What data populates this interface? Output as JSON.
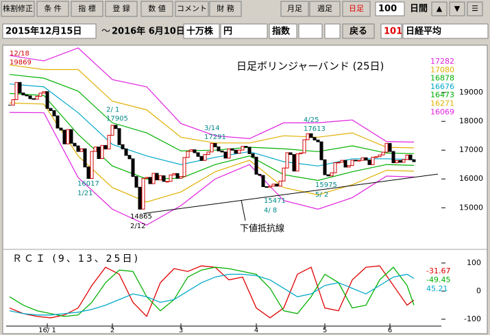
{
  "toolbar": {
    "buttons": [
      "株割修正",
      "条 件",
      "指 標",
      "登 録",
      "数 値",
      "コメント",
      "財 務",
      "月足",
      "週足",
      "日足"
    ],
    "period": "100",
    "period_unit": "日間",
    "nav": [
      "▲",
      "▼",
      "☰"
    ]
  },
  "query": {
    "from": "2015年12月15日",
    "sep": "～",
    "to": "2016年 6月10日",
    "unit": "十万株",
    "currency": "円",
    "index_label": "指数",
    "back": "戻る",
    "code": "101",
    "name": "日経平均"
  },
  "chart_data": [
    {
      "type": "candlestick",
      "title": "日足ボリンジャーバンド (25日)",
      "values": [
        18565,
        18756,
        19353,
        18986,
        18916,
        18886,
        18789,
        18769,
        18873,
        18982,
        19033,
        18450,
        18374,
        18191,
        17767,
        17697,
        17218,
        17715,
        17240,
        17147,
        16955,
        17048,
        16416,
        16017,
        16958,
        17110,
        16708,
        17163,
        17041,
        17518,
        17865,
        17750,
        17191,
        17044,
        16819,
        16700,
        16085,
        15713,
        14952,
        16022,
        16054,
        15836,
        16196,
        15967,
        16111,
        15915,
        15915,
        16140,
        16188,
        16026,
        16085,
        16746,
        16960,
        17014,
        16911,
        16784,
        16642,
        16852,
        16938,
        17233,
        17117,
        16974,
        16936,
        16724,
        17048,
        17000,
        16892,
        17002,
        17134,
        17103,
        16878,
        16758,
        16164,
        16123,
        15732,
        15715,
        15749,
        15821,
        15751,
        15928,
        16381,
        16911,
        16848,
        16275,
        16874,
        16906,
        17363,
        17572,
        17440,
        17353,
        17290,
        16666,
        16147,
        16106,
        16216,
        16565,
        16579,
        16646,
        16412,
        16466,
        16652,
        16644,
        16646,
        16736,
        16654,
        16498,
        16757,
        16772,
        16834,
        16931,
        17235,
        16955,
        16562,
        16642,
        16580,
        16675,
        16830,
        16668,
        16601
      ],
      "xlim": [
        -1,
        126
      ],
      "ylim": [
        13650,
        20550
      ],
      "yticks": [
        15000,
        16000,
        17000,
        18000,
        19000
      ],
      "bands": {
        "x": [
          0,
          10,
          20,
          30,
          40,
          50,
          60,
          70,
          80,
          90,
          100,
          110,
          118
        ],
        "series": [
          {
            "color": "#e020e0",
            "values": [
              20290,
              20100,
              20550,
              19450,
              19200,
              17925,
              17500,
              17400,
              17950,
              17950,
              18050,
              17300,
              17282
            ]
          },
          {
            "color": "#e0b000",
            "values": [
              19960,
              19800,
              19800,
              18700,
              18400,
              17450,
              17250,
              17250,
              17500,
              17450,
              17600,
              17100,
              17080
            ]
          },
          {
            "color": "#00b000",
            "values": [
              19630,
              19500,
              19050,
              17950,
              17600,
              16975,
              17000,
              17100,
              17050,
              16950,
              17150,
              16900,
              16878
            ]
          },
          {
            "color": "#00a8c8",
            "values": [
              19300,
              19200,
              18300,
              17200,
              16800,
              16500,
              16750,
              16950,
              16600,
              16450,
              16700,
              16700,
              16676
            ]
          },
          {
            "color": "#00b000",
            "values": [
              18970,
              18900,
              17550,
              16450,
              16000,
              16025,
              16500,
              16800,
              16150,
              15950,
              16250,
              16500,
              16473
            ]
          },
          {
            "color": "#e0b000",
            "values": [
              18640,
              18600,
              16800,
              15700,
              15200,
              15550,
              16250,
              16650,
              15700,
              15450,
              15800,
              16300,
              16271
            ]
          },
          {
            "color": "#e020e0",
            "values": [
              18310,
              18300,
              16050,
              14950,
              14400,
              15075,
              16000,
              16500,
              15250,
              14950,
              15350,
              16100,
              16069
            ]
          }
        ]
      },
      "annotations": [
        {
          "date": "12/18",
          "value": 19869
        },
        {
          "date": "2/ 1",
          "value": 17905
        },
        {
          "date": "3/14",
          "value": 17291
        },
        {
          "date": "4/25",
          "value": 17613
        },
        {
          "date": "1/21",
          "value": 16017
        },
        {
          "date": "2/12",
          "value": 14865
        },
        {
          "date": "4/ 8",
          "value": 15471
        },
        {
          "date": "5/ 2",
          "value": 15975
        }
      ],
      "support_line": {
        "label": "下値抵抗線",
        "x": [
          39,
          125
        ],
        "values": [
          14800,
          16170
        ]
      }
    },
    {
      "type": "line",
      "title": "ＲＣＩ (9、13、25日)",
      "x": [
        0,
        4,
        8,
        12,
        16,
        20,
        24,
        28,
        32,
        36,
        40,
        44,
        48,
        52,
        56,
        60,
        64,
        68,
        72,
        76,
        80,
        84,
        88,
        92,
        96,
        100,
        104,
        108,
        112,
        116,
        118
      ],
      "xlim": [
        -1,
        126
      ],
      "ylim": [
        -144,
        134
      ],
      "yticks": [
        -100,
        0,
        100
      ],
      "xticks": [
        {
          "value": 11,
          "label": "16/ 1"
        },
        {
          "value": 30,
          "label": "2"
        },
        {
          "value": 50,
          "label": "3"
        },
        {
          "value": 72,
          "label": "4"
        },
        {
          "value": 92,
          "label": "5"
        },
        {
          "value": 111,
          "label": "6"
        }
      ],
      "series": [
        {
          "color": "#e00000",
          "values": [
            -60,
            -80,
            -90,
            -95,
            -85,
            -60,
            20,
            85,
            60,
            -40,
            -90,
            30,
            80,
            70,
            90,
            85,
            40,
            50,
            -60,
            -95,
            -60,
            60,
            85,
            -60,
            -70,
            40,
            85,
            90,
            20,
            -50,
            -31.67
          ]
        },
        {
          "color": "#00b000",
          "values": [
            -20,
            -50,
            -70,
            -80,
            -90,
            -85,
            -40,
            30,
            75,
            70,
            -20,
            -70,
            -30,
            50,
            75,
            85,
            80,
            70,
            60,
            10,
            -70,
            -80,
            -20,
            60,
            30,
            -60,
            -50,
            40,
            85,
            20,
            -49.45
          ]
        },
        {
          "color": "#00a8c8",
          "values": [
            -70,
            -80,
            -85,
            -85,
            -80,
            -75,
            -65,
            -50,
            -30,
            -10,
            -20,
            -40,
            -30,
            0,
            30,
            50,
            60,
            60,
            55,
            40,
            10,
            -20,
            -10,
            20,
            30,
            10,
            -10,
            20,
            50,
            60,
            45.21
          ]
        }
      ]
    }
  ]
}
